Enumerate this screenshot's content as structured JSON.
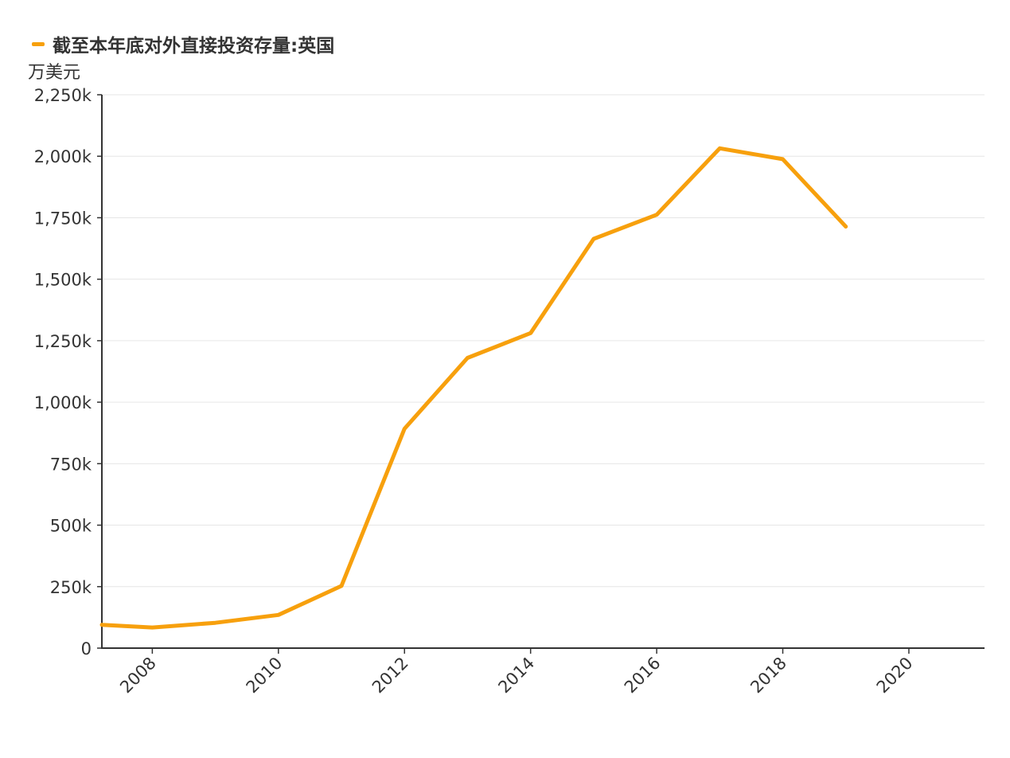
{
  "chart_data": {
    "type": "line",
    "title": "",
    "xlabel": "",
    "ylabel": "万美元",
    "x_ticks": [
      "2008",
      "2010",
      "2012",
      "2014",
      "2016",
      "2018",
      "2020"
    ],
    "y_ticks": [
      "0",
      "250k",
      "500k",
      "750k",
      "1,000k",
      "1,250k",
      "1,500k",
      "1,750k",
      "2,000k",
      "2,250k"
    ],
    "xlim": [
      2007.2,
      2021.2
    ],
    "ylim": [
      0,
      2250000
    ],
    "grid": true,
    "legend_position": "top-left",
    "series": [
      {
        "name": "截至本年底对外直接投资存量:英国",
        "color": "#f7a00d",
        "x": [
          2007.2,
          2008,
          2009,
          2010,
          2011,
          2012,
          2013,
          2014,
          2015,
          2016,
          2017,
          2018,
          2019
        ],
        "y": [
          95000,
          84000,
          103000,
          135000,
          253000,
          892000,
          1180000,
          1281000,
          1664000,
          1762000,
          2032000,
          1988000,
          1714000
        ]
      }
    ]
  }
}
